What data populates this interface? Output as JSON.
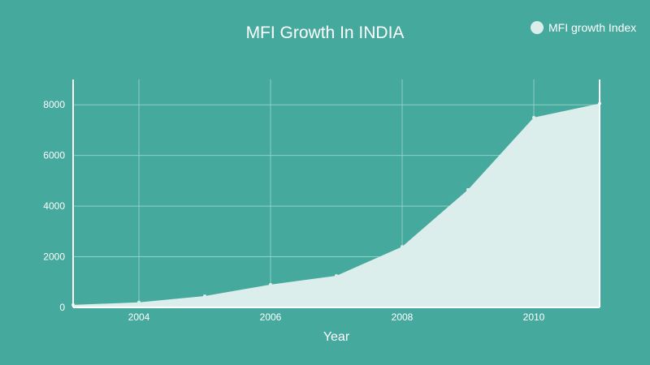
{
  "chart_data": {
    "type": "area",
    "title": "MFI Growth In INDIA",
    "xlabel": "Year",
    "ylabel": "",
    "x": [
      2003,
      2004,
      2005,
      2006,
      2007,
      2008,
      2009,
      2010,
      2011
    ],
    "series": [
      {
        "name": "MFI growth Index",
        "values": [
          100,
          200,
          450,
          900,
          1250,
          2400,
          4650,
          7500,
          8050
        ]
      }
    ],
    "xlim": [
      2003,
      2011
    ],
    "ylim": [
      0,
      9000
    ],
    "xticks": [
      "2004",
      "2006",
      "2008",
      "2010"
    ],
    "yticks": [
      "0",
      "2000",
      "4000",
      "6000",
      "8000"
    ],
    "grid": true,
    "legend_position": "top-right",
    "colors": {
      "background": "#46a99d",
      "fill": "#dbeeeb",
      "grid": "#8fd0c7",
      "text": "#ffffff"
    }
  }
}
